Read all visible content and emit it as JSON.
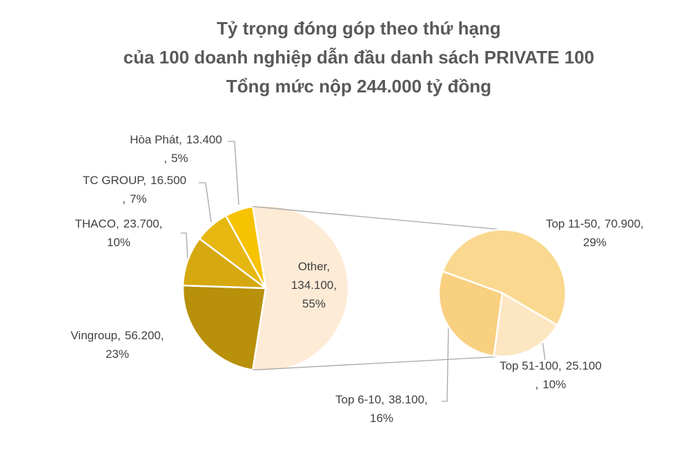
{
  "chart_data": {
    "type": "pie-of-pie",
    "title": [
      "Tỷ trọng đóng góp theo thứ hạng",
      "của 100 doanh nghiệp dẫn đầu danh sách PRIVATE 100",
      "Tổng mức nộp 244.000 tỷ đồng"
    ],
    "label_separator": ",",
    "pie": {
      "categories": [
        "Other",
        "Vingroup",
        "THACO",
        "TC GROUP",
        "Hòa Phát"
      ],
      "values": [
        134100,
        56200,
        23700,
        16500,
        13400
      ],
      "value_labels": [
        "134.100",
        "56.200",
        "23.700",
        "16.500",
        "13.400"
      ],
      "share_labels": [
        "55%",
        "23%",
        "10%",
        "7%",
        "5%"
      ],
      "colors": [
        "#fdebd6",
        "#b8900a",
        "#d6a80f",
        "#e6b711",
        "#f7c200"
      ]
    },
    "secondary_pie": {
      "categories": [
        "Top 11-50",
        "Top 51-100",
        "Top 6-10"
      ],
      "values": [
        70900,
        25100,
        38100
      ],
      "value_labels": [
        "70.900",
        "25.100",
        "38.100"
      ],
      "share_labels": [
        "29%",
        "10%",
        "16%"
      ],
      "colors": [
        "#fad890",
        "#fde6c2",
        "#f9cf80"
      ]
    }
  }
}
